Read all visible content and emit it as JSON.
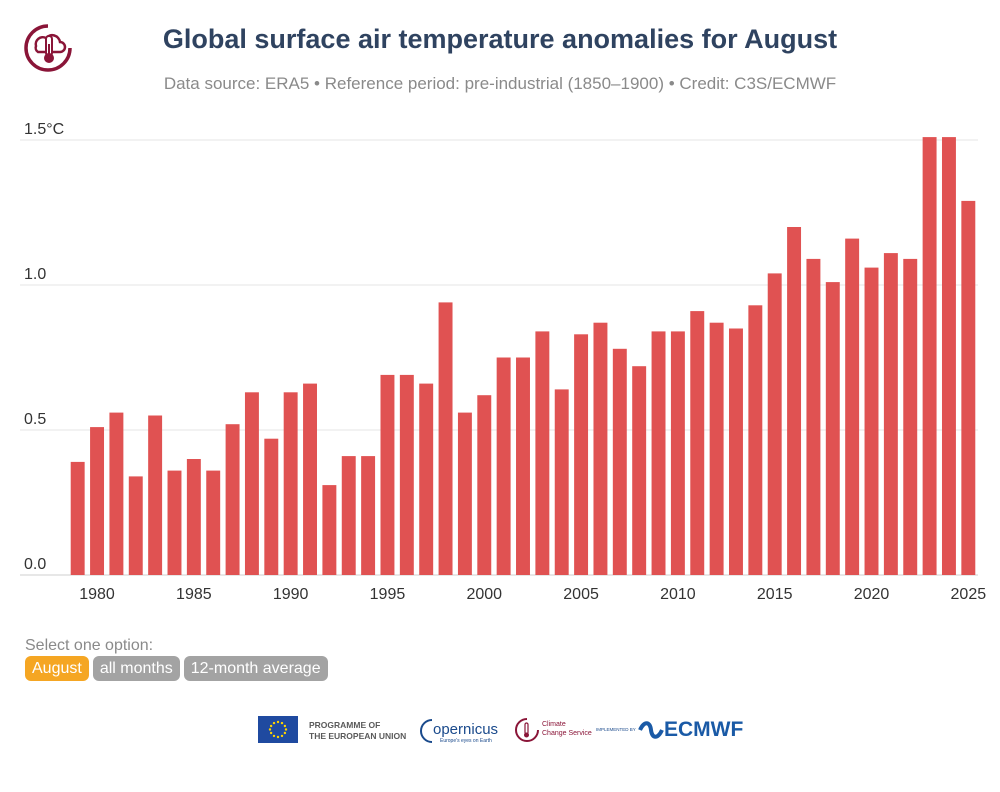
{
  "header": {
    "title": "Global surface air temperature anomalies for August",
    "subtitle": "Data source: ERA5 • Reference period: pre-industrial (1850–1900) • Credit: C3S/ECMWF"
  },
  "colors": {
    "bar": "#e05252",
    "active_option": "#f5a623",
    "inactive_option": "#a3a3a3",
    "title": "#2f4360",
    "logo": "#8a1538"
  },
  "chart_data": {
    "type": "bar",
    "title": "Global surface air temperature anomalies for August",
    "xlabel": "",
    "ylabel": "",
    "ylim": [
      0,
      1.5
    ],
    "y_ticks": [
      {
        "value": 0.0,
        "label": "0.0"
      },
      {
        "value": 0.5,
        "label": "0.5"
      },
      {
        "value": 1.0,
        "label": "1.0"
      },
      {
        "value": 1.5,
        "label": "1.5°C"
      }
    ],
    "x_ticks": [
      "1980",
      "1985",
      "1990",
      "1995",
      "2000",
      "2005",
      "2010",
      "2015",
      "2020",
      "2025"
    ],
    "grid": "horizontal",
    "categories": [
      1979,
      1980,
      1981,
      1982,
      1983,
      1984,
      1985,
      1986,
      1987,
      1988,
      1989,
      1990,
      1991,
      1992,
      1993,
      1994,
      1995,
      1996,
      1997,
      1998,
      1999,
      2000,
      2001,
      2002,
      2003,
      2004,
      2005,
      2006,
      2007,
      2008,
      2009,
      2010,
      2011,
      2012,
      2013,
      2014,
      2015,
      2016,
      2017,
      2018,
      2019,
      2020,
      2021,
      2022,
      2023,
      2024,
      2025
    ],
    "values": [
      0.39,
      0.51,
      0.56,
      0.34,
      0.55,
      0.36,
      0.4,
      0.36,
      0.52,
      0.63,
      0.47,
      0.63,
      0.66,
      0.31,
      0.41,
      0.41,
      0.69,
      0.69,
      0.66,
      0.94,
      0.56,
      0.62,
      0.75,
      0.75,
      0.84,
      0.64,
      0.83,
      0.87,
      0.78,
      0.72,
      0.84,
      0.84,
      0.91,
      0.87,
      0.85,
      0.93,
      1.04,
      1.2,
      1.09,
      1.01,
      1.16,
      1.06,
      1.11,
      1.09,
      1.51,
      1.51,
      1.29
    ]
  },
  "controls": {
    "select_label": "Select one option:",
    "options": [
      "August",
      "all months",
      "12-month average"
    ],
    "selected": "August"
  },
  "footer": {
    "eu_text": "PROGRAMME OF\nTHE EUROPEAN UNION",
    "copernicus": "opernicus",
    "copernicus_tagline": "Europe's eyes on Earth",
    "c3s_text": "Climate\nChange Service",
    "implemented_by": "IMPLEMENTED BY",
    "ecmwf": "ECMWF"
  }
}
